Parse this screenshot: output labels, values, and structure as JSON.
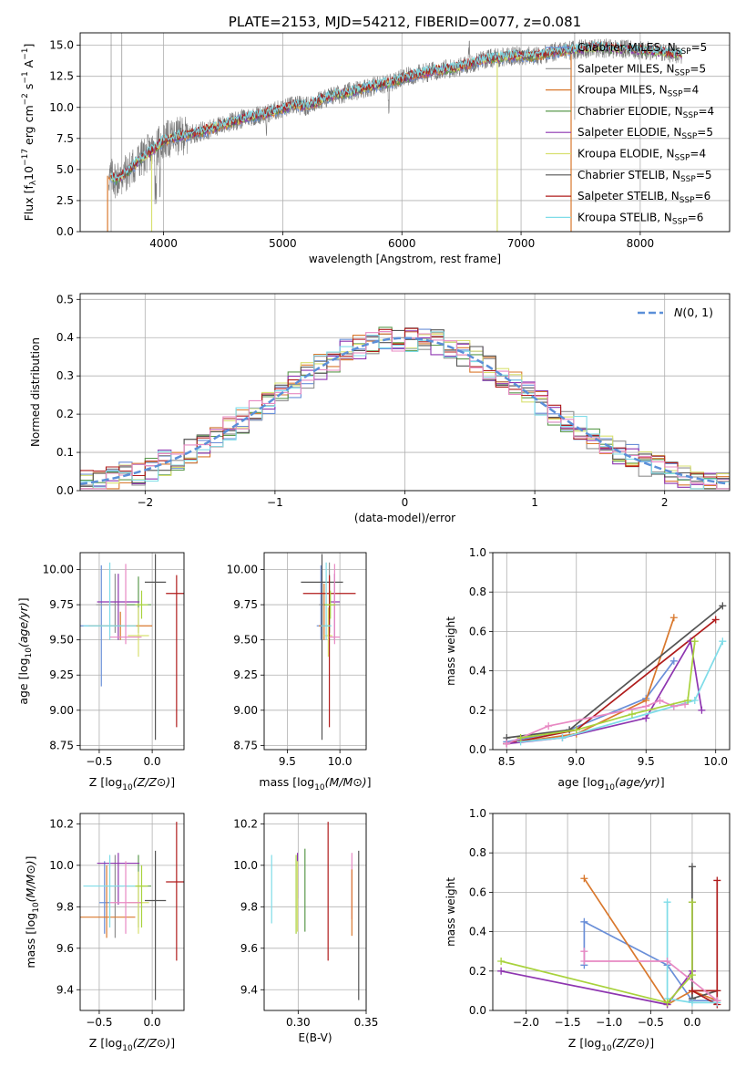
{
  "colors": {
    "Chabrier MILES": "#6a8fd8",
    "Salpeter MILES": "#909090",
    "Kroupa MILES": "#d9782d",
    "Chabrier ELODIE": "#5b9a4e",
    "Salpeter ELODIE": "#8e35b0",
    "Kroupa ELODIE": "#d8e070",
    "Chabrier STELIB": "#555555",
    "Salpeter STELIB": "#b01c1c",
    "Kroupa STELIB": "#7fdce8",
    "pink": "#e889c3",
    "lime": "#a8d23c",
    "normal": "#5b8fd8",
    "grid": "#b0b0b0"
  },
  "chart_data": [
    {
      "id": "spectrum",
      "type": "line",
      "title": "PLATE=2153, MJD=54212, FIBERID=0077, z=0.081",
      "xlabel": "wavelength [Angstrom, rest frame]",
      "ylabel": "Flux [f_λ10^-17 erg cm^-2 s^-1 A^-1]",
      "xlim": [
        3300,
        8750
      ],
      "ylim": [
        0,
        16
      ],
      "xticks": [
        4000,
        5000,
        6000,
        7000,
        8000
      ],
      "yticks": [
        0.0,
        2.5,
        5.0,
        7.5,
        10.0,
        12.5,
        15.0
      ],
      "continuum": [
        [
          3540,
          4.5
        ],
        [
          3600,
          4.2
        ],
        [
          3700,
          4.8
        ],
        [
          3800,
          5.8
        ],
        [
          3900,
          6.5
        ],
        [
          4000,
          7.3
        ],
        [
          4100,
          7.6
        ],
        [
          4200,
          7.8
        ],
        [
          4300,
          8.0
        ],
        [
          4400,
          8.3
        ],
        [
          4500,
          8.6
        ],
        [
          4600,
          8.9
        ],
        [
          4700,
          9.2
        ],
        [
          4800,
          9.4
        ],
        [
          4900,
          9.6
        ],
        [
          5000,
          9.9
        ],
        [
          5100,
          10.2
        ],
        [
          5200,
          10.1
        ],
        [
          5300,
          10.5
        ],
        [
          5400,
          10.9
        ],
        [
          5500,
          11.1
        ],
        [
          5600,
          11.3
        ],
        [
          5700,
          11.6
        ],
        [
          5800,
          11.8
        ],
        [
          5900,
          12.0
        ],
        [
          6000,
          12.3
        ],
        [
          6100,
          12.6
        ],
        [
          6200,
          12.8
        ],
        [
          6300,
          13.0
        ],
        [
          6400,
          13.1
        ],
        [
          6500,
          13.3
        ],
        [
          6600,
          13.6
        ],
        [
          6700,
          13.9
        ],
        [
          6800,
          14.0
        ],
        [
          6900,
          14.1
        ],
        [
          7000,
          14.2
        ],
        [
          7100,
          14.1
        ],
        [
          7200,
          14.3
        ],
        [
          7300,
          14.5
        ],
        [
          7400,
          14.6
        ],
        [
          7600,
          14.8
        ],
        [
          7800,
          14.7
        ],
        [
          8000,
          14.6
        ],
        [
          8200,
          14.4
        ],
        [
          8350,
          14.2
        ]
      ],
      "legend": [
        {
          "name": "Chabrier MILES, N",
          "sub": "SSP",
          "suffix": "=5"
        },
        {
          "name": "Salpeter MILES, N",
          "sub": "SSP",
          "suffix": "=5"
        },
        {
          "name": "Kroupa MILES, N",
          "sub": "SSP",
          "suffix": "=4"
        },
        {
          "name": "Chabrier ELODIE, N",
          "sub": "SSP",
          "suffix": "=4"
        },
        {
          "name": "Salpeter ELODIE, N",
          "sub": "SSP",
          "suffix": "=5"
        },
        {
          "name": "Kroupa ELODIE, N",
          "sub": "SSP",
          "suffix": "=4"
        },
        {
          "name": "Chabrier STELIB, N",
          "sub": "SSP",
          "suffix": "=5"
        },
        {
          "name": "Salpeter STELIB, N",
          "sub": "SSP",
          "suffix": "=6"
        },
        {
          "name": "Kroupa STELIB, N",
          "sub": "SSP",
          "suffix": "=6"
        }
      ]
    },
    {
      "id": "residuals",
      "type": "area",
      "xlabel": "(data-model)/error",
      "ylabel": "Normed distribution",
      "xlim": [
        -2.5,
        2.5
      ],
      "ylim": [
        0,
        0.515
      ],
      "xticks": [
        -2,
        -1,
        0,
        1,
        2
      ],
      "yticks": [
        0.0,
        0.1,
        0.2,
        0.3,
        0.4,
        0.5
      ],
      "bin_width": 0.1,
      "normal_label": "N(0, 1)",
      "normal": {
        "mean": 0,
        "sigma": 1
      }
    },
    {
      "id": "age_vs_Z",
      "type": "scatter",
      "xlabel": "Z [log10(Z/Z⊙)]",
      "ylabel": "age  [log10(age/yr)]",
      "xlim": [
        -0.68,
        0.3
      ],
      "ylim": [
        8.72,
        10.12
      ],
      "xticks": [
        -0.5,
        0.0
      ],
      "yticks": [
        8.75,
        9.0,
        9.25,
        9.5,
        9.75,
        10.0
      ],
      "points": [
        {
          "c": "Chabrier MILES",
          "x": -0.48,
          "y": 9.6,
          "xerr": 0.2,
          "yerr": [
            0.43,
            0.43
          ]
        },
        {
          "c": "Salpeter MILES",
          "x": -0.35,
          "y": 9.75,
          "xerr": 0.18,
          "yerr": [
            0.2,
            0.22
          ]
        },
        {
          "c": "Kroupa MILES",
          "x": -0.3,
          "y": 9.6,
          "xerr": 0.3,
          "yerr": [
            0.1,
            0.1
          ]
        },
        {
          "c": "Chabrier ELODIE",
          "x": -0.13,
          "y": 9.75,
          "xerr": 0.12,
          "yerr": [
            0.2,
            0.2
          ]
        },
        {
          "c": "Salpeter ELODIE",
          "x": -0.32,
          "y": 9.77,
          "xerr": 0.2,
          "yerr": [
            0.27,
            0.2
          ]
        },
        {
          "c": "Kroupa ELODIE",
          "x": -0.13,
          "y": 9.53,
          "xerr": 0.1,
          "yerr": [
            0.15,
            0.2
          ]
        },
        {
          "c": "Chabrier STELIB",
          "x": 0.03,
          "y": 9.91,
          "xerr": 0.1,
          "yerr": [
            1.12,
            0.2
          ]
        },
        {
          "c": "Salpeter STELIB",
          "x": 0.23,
          "y": 9.83,
          "xerr": 0.1,
          "yerr": [
            0.95,
            0.13
          ]
        },
        {
          "c": "Kroupa STELIB",
          "x": -0.4,
          "y": 9.6,
          "xerr": 0.25,
          "yerr": [
            0.1,
            0.45
          ]
        },
        {
          "c": "pink",
          "x": -0.25,
          "y": 9.52,
          "xerr": 0.15,
          "yerr": [
            0.05,
            0.52
          ]
        },
        {
          "c": "lime",
          "x": -0.1,
          "y": 9.75,
          "xerr": 0.06,
          "yerr": [
            0.1,
            0.1
          ]
        }
      ]
    },
    {
      "id": "age_vs_mass",
      "type": "scatter",
      "xlabel": "mass [log10(M/M⊙)]",
      "ylabel": "",
      "xlim": [
        9.28,
        10.25
      ],
      "ylim": [
        8.72,
        10.12
      ],
      "xticks": [
        9.5,
        10.0
      ],
      "yticks": [
        8.75,
        9.0,
        9.25,
        9.5,
        9.75,
        10.0
      ],
      "points": [
        {
          "c": "Chabrier MILES",
          "x": 9.82,
          "y": 9.6,
          "xerr": 0.04,
          "yerr": [
            0.1,
            0.43
          ]
        },
        {
          "c": "Salpeter MILES",
          "x": 9.9,
          "y": 9.75,
          "xerr": 0.1,
          "yerr": [
            0.2,
            0.3
          ]
        },
        {
          "c": "Kroupa MILES",
          "x": 9.85,
          "y": 9.6,
          "xerr": 0.05,
          "yerr": [
            0.1,
            0.3
          ]
        },
        {
          "c": "Chabrier ELODIE",
          "x": 9.9,
          "y": 9.75,
          "xerr": 0.05,
          "yerr": [
            0.2,
            0.2
          ]
        },
        {
          "c": "Salpeter ELODIE",
          "x": 9.95,
          "y": 9.77,
          "xerr": 0.05,
          "yerr": [
            0.27,
            0.2
          ]
        },
        {
          "c": "Kroupa ELODIE",
          "x": 9.89,
          "y": 9.53,
          "xerr": 0.04,
          "yerr": [
            0.15,
            0.2
          ]
        },
        {
          "c": "Chabrier STELIB",
          "x": 9.83,
          "y": 9.91,
          "xerr": 0.2,
          "yerr": [
            1.12,
            0.2
          ]
        },
        {
          "c": "Salpeter STELIB",
          "x": 9.9,
          "y": 9.83,
          "xerr": 0.25,
          "yerr": [
            0.95,
            0.13
          ]
        },
        {
          "c": "Kroupa STELIB",
          "x": 9.87,
          "y": 9.6,
          "xerr": 0.05,
          "yerr": [
            0.1,
            0.45
          ]
        },
        {
          "c": "pink",
          "x": 9.95,
          "y": 9.52,
          "xerr": 0.05,
          "yerr": [
            0.05,
            0.52
          ]
        },
        {
          "c": "lime",
          "x": 9.91,
          "y": 9.75,
          "xerr": 0.05,
          "yerr": [
            0.1,
            0.1
          ]
        }
      ]
    },
    {
      "id": "weight_vs_age",
      "type": "line",
      "xlabel": "age  [log10(age/yr)]",
      "ylabel": "mass weight",
      "xlim": [
        8.4,
        10.1
      ],
      "ylim": [
        0,
        1.0
      ],
      "xticks": [
        8.5,
        9.0,
        9.5,
        10.0
      ],
      "yticks": [
        0.0,
        0.2,
        0.4,
        0.6,
        0.8,
        1.0
      ],
      "series": [
        {
          "c": "Chabrier MILES",
          "x": [
            8.5,
            8.95,
            9.5,
            9.7
          ],
          "y": [
            0.04,
            0.1,
            0.26,
            0.45
          ]
        },
        {
          "c": "Kroupa MILES",
          "x": [
            8.5,
            9.0,
            9.5,
            9.7
          ],
          "y": [
            0.03,
            0.08,
            0.25,
            0.67
          ]
        },
        {
          "c": "Chabrier STELIB",
          "x": [
            8.5,
            8.95,
            10.05
          ],
          "y": [
            0.06,
            0.1,
            0.73
          ]
        },
        {
          "c": "Salpeter STELIB",
          "x": [
            8.5,
            9.0,
            10.0
          ],
          "y": [
            0.03,
            0.1,
            0.66
          ]
        },
        {
          "c": "Salpeter ELODIE",
          "x": [
            8.5,
            8.9,
            9.5,
            9.82,
            9.9
          ],
          "y": [
            0.03,
            0.06,
            0.16,
            0.55,
            0.2
          ]
        },
        {
          "c": "Kroupa STELIB",
          "x": [
            8.6,
            8.9,
            9.7,
            9.85,
            10.05
          ],
          "y": [
            0.04,
            0.06,
            0.22,
            0.25,
            0.55
          ]
        },
        {
          "c": "pink",
          "x": [
            8.5,
            8.8,
            9.5,
            9.6,
            9.7,
            9.78
          ],
          "y": [
            0.03,
            0.12,
            0.22,
            0.25,
            0.22,
            0.23
          ]
        },
        {
          "c": "lime",
          "x": [
            8.6,
            9.0,
            9.4,
            9.8,
            9.85
          ],
          "y": [
            0.06,
            0.1,
            0.18,
            0.25,
            0.55
          ]
        }
      ]
    },
    {
      "id": "mass_vs_Z",
      "type": "scatter",
      "xlabel": "Z [log10(Z/Z⊙)]",
      "ylabel": "mass [log10(M/M⊙)]",
      "xlim": [
        -0.68,
        0.3
      ],
      "ylim": [
        9.3,
        10.25
      ],
      "xticks": [
        -0.5,
        0.0
      ],
      "yticks": [
        9.4,
        9.6,
        9.8,
        10.0,
        10.2
      ],
      "points": [
        {
          "c": "Chabrier MILES",
          "x": -0.45,
          "y": 9.82,
          "xerr": 0.05,
          "yerr": [
            0.15,
            0.2
          ]
        },
        {
          "c": "Salpeter MILES",
          "x": -0.35,
          "y": 9.9,
          "xerr": 0.08,
          "yerr": [
            0.25,
            0.15
          ]
        },
        {
          "c": "Kroupa MILES",
          "x": -0.43,
          "y": 9.75,
          "xerr": 0.27,
          "yerr": [
            0.1,
            0.25
          ]
        },
        {
          "c": "Chabrier ELODIE",
          "x": -0.13,
          "y": 9.9,
          "xerr": 0.12,
          "yerr": [
            0.2,
            0.15
          ]
        },
        {
          "c": "Salpeter ELODIE",
          "x": -0.32,
          "y": 10.01,
          "xerr": 0.2,
          "yerr": [
            0.2,
            0.05
          ]
        },
        {
          "c": "Kroupa ELODIE",
          "x": -0.13,
          "y": 9.82,
          "xerr": 0.1,
          "yerr": [
            0.15,
            0.15
          ]
        },
        {
          "c": "Chabrier STELIB",
          "x": 0.03,
          "y": 9.83,
          "xerr": 0.1,
          "yerr": [
            0.48,
            0.24
          ]
        },
        {
          "c": "Salpeter STELIB",
          "x": 0.23,
          "y": 9.92,
          "xerr": 0.1,
          "yerr": [
            0.38,
            0.29
          ]
        },
        {
          "c": "Kroupa STELIB",
          "x": -0.4,
          "y": 9.9,
          "xerr": 0.25,
          "yerr": [
            0.2,
            0.15
          ]
        },
        {
          "c": "pink",
          "x": -0.25,
          "y": 9.82,
          "xerr": 0.15,
          "yerr": [
            0.15,
            0.2
          ]
        },
        {
          "c": "lime",
          "x": -0.1,
          "y": 9.9,
          "xerr": 0.06,
          "yerr": [
            0.2,
            0.1
          ]
        }
      ]
    },
    {
      "id": "mass_vs_ebv",
      "type": "scatter",
      "xlabel": "E(B-V)",
      "ylabel": "",
      "xlim": [
        0.275,
        0.35
      ],
      "ylim": [
        9.3,
        10.25
      ],
      "xticks": [
        0.3,
        0.35
      ],
      "yticks": [
        9.4,
        9.6,
        9.8,
        10.0,
        10.2
      ],
      "points": [
        {
          "c": "Kroupa STELIB",
          "x": 0.2805,
          "ylo": 9.72,
          "yhi": 10.05
        },
        {
          "c": "lime",
          "x": 0.2985,
          "ylo": 9.67,
          "yhi": 10.05
        },
        {
          "c": "Salpeter ELODIE",
          "x": 0.2995,
          "ylo": 9.84,
          "yhi": 10.06
        },
        {
          "c": "Kroupa ELODIE",
          "x": 0.2995,
          "ylo": 9.68,
          "yhi": 10.02
        },
        {
          "c": "Chabrier ELODIE",
          "x": 0.305,
          "ylo": 9.68,
          "yhi": 10.08
        },
        {
          "c": "Salpeter STELIB",
          "x": 0.322,
          "ylo": 9.54,
          "yhi": 10.21
        },
        {
          "c": "pink",
          "x": 0.3395,
          "ylo": 9.74,
          "yhi": 10.06
        },
        {
          "c": "Kroupa MILES",
          "x": 0.3395,
          "ylo": 9.66,
          "yhi": 9.98
        },
        {
          "c": "Chabrier STELIB",
          "x": 0.3445,
          "ylo": 9.35,
          "yhi": 10.07
        }
      ]
    },
    {
      "id": "weight_vs_Z",
      "type": "line",
      "xlabel": "Z [log10(Z/Z⊙)]",
      "ylabel": "mass weight",
      "xlim": [
        -2.4,
        0.45
      ],
      "ylim": [
        0,
        1.0
      ],
      "xticks": [
        -2.0,
        -1.5,
        -1.0,
        -0.5,
        0.0
      ],
      "yticks": [
        0.0,
        0.2,
        0.4,
        0.6,
        0.8,
        1.0
      ],
      "series": [
        {
          "c": "Chabrier MILES",
          "x": [
            -1.3,
            -1.3,
            -0.3,
            0.0,
            0.3
          ],
          "y": [
            0.23,
            0.45,
            0.23,
            0.05,
            0.05
          ]
        },
        {
          "c": "Kroupa MILES",
          "x": [
            -1.3,
            -0.3,
            0.0,
            0.3
          ],
          "y": [
            0.67,
            0.03,
            0.1,
            0.05
          ]
        },
        {
          "c": "Chabrier STELIB",
          "x": [
            0.0,
            0.0,
            0.3
          ],
          "y": [
            0.73,
            0.06,
            0.1
          ]
        },
        {
          "c": "Salpeter STELIB",
          "x": [
            0.3,
            0.3,
            0.0,
            0.3
          ],
          "y": [
            0.66,
            0.03,
            0.1,
            0.1
          ]
        },
        {
          "c": "Salpeter ELODIE",
          "x": [
            -2.3,
            -0.3,
            0.0,
            0.0
          ],
          "y": [
            0.2,
            0.03,
            0.2,
            0.55
          ]
        },
        {
          "c": "Kroupa STELIB",
          "x": [
            -0.3,
            -0.3,
            0.0,
            0.3
          ],
          "y": [
            0.55,
            0.06,
            0.04,
            0.04
          ]
        },
        {
          "c": "pink",
          "x": [
            -1.3,
            -1.3,
            -0.3,
            0.3
          ],
          "y": [
            0.3,
            0.25,
            0.25,
            0.05
          ]
        },
        {
          "c": "lime",
          "x": [
            -2.3,
            -0.3,
            0.0,
            0.0
          ],
          "y": [
            0.25,
            0.04,
            0.18,
            0.55
          ]
        }
      ]
    }
  ]
}
